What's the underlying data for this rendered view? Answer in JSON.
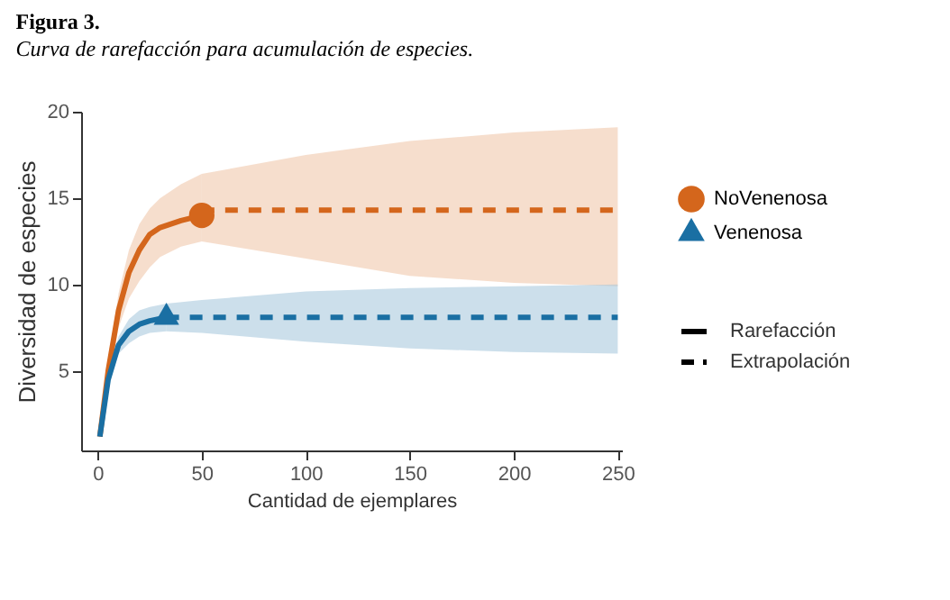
{
  "chart_data": {
    "type": "line",
    "title": "Figura 3.",
    "subtitle": "Curva de rarefacción para acumulación de especies.",
    "xlabel": "Cantidad de ejemplares",
    "ylabel": "Diversidad de especies",
    "xlim": [
      -8,
      252
    ],
    "ylim": [
      0.4,
      20
    ],
    "xticks": [
      0,
      50,
      100,
      150,
      200,
      250
    ],
    "yticks": [
      5,
      10,
      15,
      20
    ],
    "grid": false,
    "legend": "right",
    "annotations": [
      "Rarefacción",
      "Extrapolación"
    ],
    "series": [
      {
        "line_style": "solid",
        "color": "#d4661c",
        "x": [
          1,
          5,
          10,
          15,
          20,
          25,
          30,
          40,
          50
        ],
        "values": [
          1.2,
          5,
          8.5,
          10.7,
          12,
          12.9,
          13.3,
          13.7,
          14
        ],
        "lower": [
          1.1,
          4.5,
          7.5,
          9.2,
          10.2,
          11,
          11.6,
          12.2,
          12.5
        ],
        "upper": [
          1.3,
          5.5,
          9.5,
          12,
          13.5,
          14.4,
          15,
          15.8,
          16.4
        ]
      },
      {
        "line_style": "dashed",
        "color": "#d4661c",
        "x": [
          50,
          100,
          150,
          200,
          250
        ],
        "values": [
          14.3,
          14.3,
          14.3,
          14.3,
          14.3
        ],
        "lower": [
          12.5,
          11.5,
          10.5,
          10.1,
          9.9
        ],
        "upper": [
          16.4,
          17.5,
          18.3,
          18.8,
          19.1
        ]
      },
      {
        "line_style": "solid",
        "color": "#1a6fa3",
        "x": [
          1,
          5,
          10,
          15,
          20,
          25,
          33
        ],
        "values": [
          1.2,
          4.5,
          6.5,
          7.3,
          7.7,
          7.9,
          8.1
        ],
        "lower": [
          1.1,
          4.1,
          6,
          6.6,
          7,
          7.2,
          7.3
        ],
        "upper": [
          1.3,
          4.9,
          7,
          8,
          8.5,
          8.7,
          8.9
        ]
      },
      {
        "line_style": "dashed",
        "color": "#1a6fa3",
        "x": [
          33,
          50,
          100,
          150,
          200,
          250
        ],
        "values": [
          8.1,
          8.1,
          8.1,
          8.1,
          8.1,
          8.1
        ],
        "lower": [
          7.3,
          7.2,
          6.7,
          6.3,
          6.1,
          6
        ],
        "upper": [
          8.9,
          9.1,
          9.6,
          9.8,
          9.9,
          10
        ]
      },
      {
        "type": "scatter",
        "name": "NoVenenosa",
        "marker": "circle",
        "color": "#d4661c",
        "x": [
          50
        ],
        "values": [
          14
        ]
      },
      {
        "type": "scatter",
        "name": "Venenosa",
        "marker": "triangle",
        "color": "#1a6fa3",
        "x": [
          33
        ],
        "values": [
          8.1
        ]
      }
    ]
  }
}
